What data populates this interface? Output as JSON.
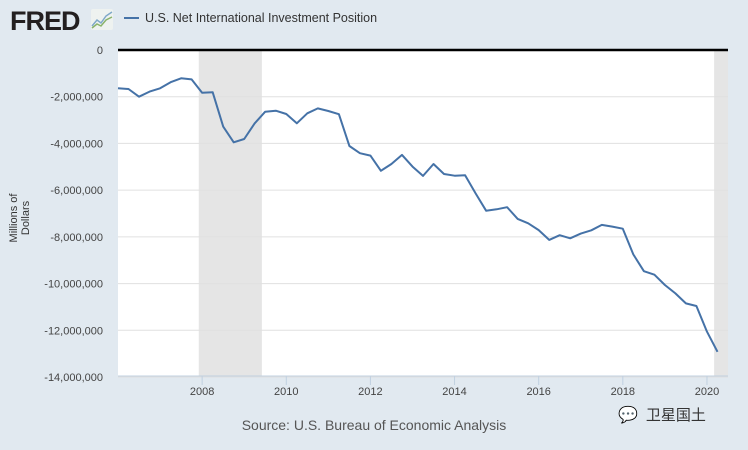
{
  "header": {
    "logo": "FRED",
    "legend_label": "U.S. Net International Investment Position"
  },
  "source": "Source: U.S. Bureau of Economic Analysis",
  "watermark": "卫星国土",
  "chart_data": {
    "type": "line",
    "title": "U.S. Net International Investment Position",
    "xlabel": "",
    "ylabel": "Millions of Dollars",
    "xlim": [
      2006.0,
      2020.5
    ],
    "ylim": [
      -14000000,
      0
    ],
    "grid": true,
    "legend_placement": "top-left",
    "color": "#4572a7",
    "recessions": [
      [
        2007.92,
        2009.42
      ],
      [
        2020.17,
        2020.5
      ]
    ],
    "x_ticks": [
      2008,
      2010,
      2012,
      2014,
      2016,
      2018,
      2020
    ],
    "x_tick_labels": [
      "2008",
      "2010",
      "2012",
      "2014",
      "2016",
      "2018",
      "2020"
    ],
    "y_ticks": [
      0,
      -2000000,
      -4000000,
      -6000000,
      -8000000,
      -10000000,
      -12000000,
      -14000000
    ],
    "y_tick_labels": [
      "0",
      "-2,000,000",
      "-4,000,000",
      "-6,000,000",
      "-8,000,000",
      "-10,000,000",
      "-12,000,000",
      "-14,000,000"
    ],
    "series": [
      {
        "name": "U.S. Net International Investment Position",
        "start": 2006.0,
        "step": 0.25,
        "values": [
          -1640000,
          -1670000,
          -2000000,
          -1780000,
          -1640000,
          -1380000,
          -1210000,
          -1260000,
          -1830000,
          -1810000,
          -3280000,
          -3950000,
          -3810000,
          -3140000,
          -2640000,
          -2600000,
          -2740000,
          -3140000,
          -2710000,
          -2500000,
          -2610000,
          -2750000,
          -4110000,
          -4420000,
          -4520000,
          -5170000,
          -4880000,
          -4490000,
          -4990000,
          -5390000,
          -4880000,
          -5310000,
          -5380000,
          -5360000,
          -6140000,
          -6880000,
          -6820000,
          -6730000,
          -7230000,
          -7420000,
          -7710000,
          -8130000,
          -7930000,
          -8060000,
          -7860000,
          -7720000,
          -7490000,
          -7560000,
          -7650000,
          -8750000,
          -9470000,
          -9620000,
          -10060000,
          -10420000,
          -10850000,
          -10960000,
          -12060000,
          -12920000
        ]
      }
    ]
  }
}
